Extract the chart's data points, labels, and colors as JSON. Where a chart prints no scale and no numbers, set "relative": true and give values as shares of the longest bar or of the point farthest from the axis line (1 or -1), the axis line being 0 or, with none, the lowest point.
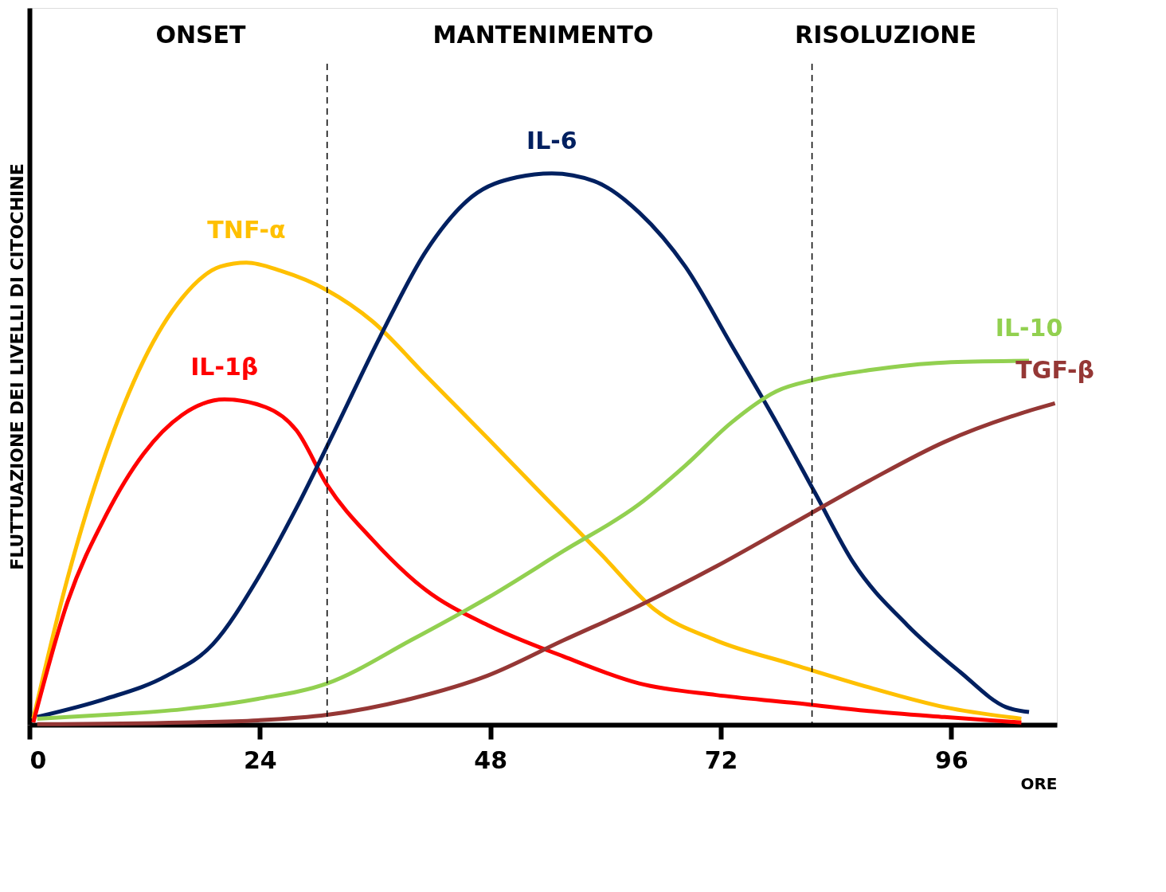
{
  "chart_data": {
    "type": "line",
    "relative": true,
    "xlabel": "ORE",
    "ylabel": "FLUTTUAZIONE DEI LIVELLI DI CITOCHINE",
    "xlim": [
      0,
      107
    ],
    "xticks": [
      0,
      24,
      48,
      72,
      96
    ],
    "grid": false,
    "legend": false,
    "marker": "none",
    "line_style": "solid",
    "series": [
      {
        "name": "TNF-α",
        "color": "#ffc000",
        "x": [
          0.4,
          3.97,
          7.94,
          11.9,
          15.9,
          19.9,
          22.6,
          26.2,
          31,
          35.7,
          41.3,
          47.7,
          54,
          59.6,
          65.1,
          71.5,
          79.4,
          87.4,
          95.3,
          103.3
        ],
        "values": [
          0.011,
          0.266,
          0.492,
          0.661,
          0.774,
          0.831,
          0.838,
          0.823,
          0.788,
          0.732,
          0.633,
          0.52,
          0.407,
          0.308,
          0.209,
          0.153,
          0.11,
          0.068,
          0.032,
          0.011
        ]
      },
      {
        "name": "IL-1β",
        "color": "#ff0000",
        "x": [
          0.4,
          3.97,
          7.94,
          11.9,
          15.9,
          20.3,
          24.6,
          27.8,
          31,
          35.7,
          41.3,
          47.7,
          55.6,
          63.5,
          71.5,
          79.4,
          87.4,
          95.3,
          103.3
        ],
        "values": [
          0.004,
          0.223,
          0.379,
          0.492,
          0.562,
          0.59,
          0.576,
          0.534,
          0.435,
          0.336,
          0.244,
          0.181,
          0.124,
          0.075,
          0.054,
          0.04,
          0.025,
          0.014,
          0.004
        ]
      },
      {
        "name": "IL-6",
        "color": "#002060",
        "x": [
          0.8,
          7.94,
          14.3,
          19.1,
          23.8,
          27.8,
          31.8,
          36.5,
          41.3,
          46.1,
          50.8,
          54.4,
          58.8,
          63.5,
          68.3,
          73.1,
          77.8,
          81.8,
          85.8,
          91.4,
          96.9,
          101.7,
          104.1
        ],
        "values": [
          0.014,
          0.047,
          0.089,
          0.146,
          0.266,
          0.393,
          0.534,
          0.703,
          0.859,
          0.958,
          0.993,
          1,
          0.986,
          0.929,
          0.831,
          0.689,
          0.548,
          0.421,
          0.294,
          0.181,
          0.096,
          0.032,
          0.023
        ]
      },
      {
        "name": "IL-10",
        "color": "#92d050",
        "x": [
          0.8,
          7.94,
          15.9,
          23.8,
          31,
          39.7,
          47.7,
          55.6,
          63.5,
          68.3,
          73.1,
          77.8,
          81.8,
          87.4,
          95.3,
          104.1
        ],
        "values": [
          0.011,
          0.018,
          0.028,
          0.047,
          0.075,
          0.153,
          0.23,
          0.315,
          0.4,
          0.47,
          0.548,
          0.605,
          0.626,
          0.643,
          0.657,
          0.66
        ]
      },
      {
        "name": "TGF-β",
        "color": "#953735",
        "x": [
          0.8,
          15.9,
          23.8,
          31,
          39.7,
          47.7,
          55.6,
          63.5,
          71.5,
          79.4,
          87.4,
          95.3,
          103.3,
          106.8
        ],
        "values": [
          0.001,
          0.004,
          0.008,
          0.018,
          0.047,
          0.089,
          0.153,
          0.216,
          0.287,
          0.364,
          0.442,
          0.513,
          0.565,
          0.583
        ]
      }
    ],
    "ref_lines": [
      {
        "axis": "x",
        "value": 31,
        "line_style": "dashed",
        "color": "#000000"
      },
      {
        "axis": "x",
        "value": 81.5,
        "line_style": "dashed",
        "color": "#000000"
      }
    ],
    "annotations": [
      "ONSET",
      "MANTENIMENTO",
      "RISOLUZIONE"
    ]
  }
}
